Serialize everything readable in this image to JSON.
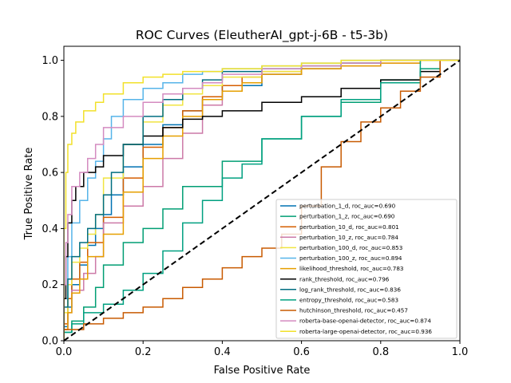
{
  "chart_data": {
    "type": "line",
    "title": "ROC Curves (EleutherAI_gpt-j-6B - t5-3b)",
    "xlabel": "False Positive Rate",
    "ylabel": "True Positive Rate",
    "xlim": [
      0,
      1.0
    ],
    "ylim": [
      0,
      1.05
    ],
    "xticks": [
      "0.0",
      "0.2",
      "0.4",
      "0.6",
      "0.8",
      "1.0"
    ],
    "yticks": [
      "0.0",
      "0.2",
      "0.4",
      "0.6",
      "0.8",
      "1.0"
    ],
    "grid": false,
    "legend_position": "lower-right",
    "series": [
      {
        "name": "perturbation_1_d, roc_auc=0.690",
        "color": "#0072b2",
        "x": [
          0,
          0.01,
          0.02,
          0.04,
          0.06,
          0.08,
          0.1,
          0.12,
          0.15,
          0.2,
          0.25,
          0.3,
          0.35,
          0.4,
          0.5,
          0.6,
          0.7,
          0.8,
          0.9,
          1.0
        ],
        "y": [
          0,
          0.05,
          0.12,
          0.2,
          0.27,
          0.34,
          0.4,
          0.45,
          0.52,
          0.62,
          0.7,
          0.77,
          0.82,
          0.86,
          0.91,
          0.95,
          0.97,
          0.99,
          1.0,
          1.0
        ]
      },
      {
        "name": "perturbation_1_z, roc_auc=0.690",
        "color": "#009e73",
        "x": [
          0,
          0.02,
          0.05,
          0.08,
          0.1,
          0.15,
          0.2,
          0.25,
          0.3,
          0.4,
          0.5,
          0.6,
          0.7,
          0.8,
          0.9,
          0.95,
          1.0
        ],
        "y": [
          0,
          0.03,
          0.07,
          0.12,
          0.19,
          0.27,
          0.35,
          0.4,
          0.47,
          0.55,
          0.64,
          0.72,
          0.8,
          0.85,
          0.93,
          0.97,
          1.0
        ]
      },
      {
        "name": "perturbation_10_d, roc_auc=0.801",
        "color": "#d55e00",
        "x": [
          0,
          0.01,
          0.02,
          0.04,
          0.06,
          0.1,
          0.15,
          0.2,
          0.25,
          0.3,
          0.35,
          0.4,
          0.45,
          0.5,
          0.6,
          0.7,
          0.8,
          0.9,
          1.0
        ],
        "y": [
          0,
          0.06,
          0.15,
          0.22,
          0.28,
          0.35,
          0.44,
          0.58,
          0.69,
          0.76,
          0.82,
          0.87,
          0.91,
          0.94,
          0.96,
          0.98,
          0.99,
          1.0,
          1.0
        ]
      },
      {
        "name": "perturbation_10_z, roc_auc=0.784",
        "color": "#cc79a7",
        "x": [
          0,
          0.01,
          0.02,
          0.05,
          0.08,
          0.1,
          0.15,
          0.2,
          0.25,
          0.3,
          0.35,
          0.4,
          0.45,
          0.5,
          0.6,
          0.7,
          0.8,
          0.9,
          1.0
        ],
        "y": [
          0,
          0.04,
          0.1,
          0.18,
          0.24,
          0.3,
          0.42,
          0.48,
          0.55,
          0.65,
          0.74,
          0.84,
          0.89,
          0.92,
          0.95,
          0.97,
          0.98,
          0.99,
          1.0
        ]
      },
      {
        "name": "perturbation_100_d, roc_auc=0.853",
        "color": "#f0e442",
        "x": [
          0,
          0.01,
          0.02,
          0.04,
          0.06,
          0.08,
          0.1,
          0.15,
          0.2,
          0.25,
          0.3,
          0.35,
          0.4,
          0.5,
          0.6,
          0.7,
          0.8,
          0.9,
          1.0
        ],
        "y": [
          0,
          0.1,
          0.2,
          0.28,
          0.33,
          0.38,
          0.45,
          0.58,
          0.7,
          0.78,
          0.84,
          0.88,
          0.91,
          0.94,
          0.96,
          0.98,
          0.99,
          1.0,
          1.0
        ]
      },
      {
        "name": "perturbation_100_z, roc_auc=0.894",
        "color": "#56b4e9",
        "x": [
          0,
          0.01,
          0.02,
          0.04,
          0.06,
          0.08,
          0.1,
          0.12,
          0.15,
          0.2,
          0.25,
          0.3,
          0.35,
          0.4,
          0.5,
          0.6,
          0.7,
          0.8,
          0.9,
          1.0
        ],
        "y": [
          0,
          0.15,
          0.3,
          0.42,
          0.5,
          0.58,
          0.64,
          0.72,
          0.8,
          0.86,
          0.9,
          0.92,
          0.95,
          0.96,
          0.97,
          0.98,
          0.99,
          1.0,
          1.0,
          1.0
        ]
      },
      {
        "name": "likelihood_threshold, roc_auc=0.783",
        "color": "#e69f00",
        "x": [
          0,
          0.01,
          0.02,
          0.04,
          0.06,
          0.1,
          0.15,
          0.2,
          0.25,
          0.3,
          0.35,
          0.4,
          0.45,
          0.5,
          0.6,
          0.7,
          0.8,
          0.9,
          1.0
        ],
        "y": [
          0,
          0.04,
          0.1,
          0.17,
          0.22,
          0.3,
          0.38,
          0.53,
          0.65,
          0.73,
          0.8,
          0.86,
          0.89,
          0.92,
          0.95,
          0.97,
          0.98,
          0.99,
          1.0
        ]
      },
      {
        "name": "rank_threshold, roc_auc=0.796",
        "color": "#000000",
        "x": [
          0,
          0.005,
          0.01,
          0.02,
          0.03,
          0.05,
          0.08,
          0.1,
          0.15,
          0.2,
          0.25,
          0.3,
          0.35,
          0.4,
          0.5,
          0.6,
          0.7,
          0.8,
          0.9,
          0.95,
          1.0
        ],
        "y": [
          0,
          0.15,
          0.3,
          0.42,
          0.5,
          0.55,
          0.6,
          0.62,
          0.66,
          0.7,
          0.73,
          0.76,
          0.79,
          0.8,
          0.82,
          0.85,
          0.87,
          0.9,
          0.93,
          0.96,
          1.0
        ]
      },
      {
        "name": "log_rank_threshold, roc_auc=0.836",
        "color": "#006e80",
        "x": [
          0,
          0.01,
          0.02,
          0.04,
          0.06,
          0.08,
          0.1,
          0.12,
          0.15,
          0.2,
          0.25,
          0.3,
          0.35,
          0.4,
          0.5,
          0.6,
          0.7,
          0.8,
          0.9,
          1.0
        ],
        "y": [
          0,
          0.12,
          0.22,
          0.3,
          0.35,
          0.4,
          0.45,
          0.52,
          0.6,
          0.7,
          0.8,
          0.86,
          0.9,
          0.93,
          0.96,
          0.97,
          0.98,
          0.99,
          1.0,
          1.0
        ]
      },
      {
        "name": "entropy_threshold, roc_auc=0.583",
        "color": "#00a080",
        "x": [
          0,
          0.02,
          0.05,
          0.1,
          0.15,
          0.2,
          0.25,
          0.3,
          0.35,
          0.4,
          0.45,
          0.5,
          0.6,
          0.7,
          0.8,
          0.9,
          1.0
        ],
        "y": [
          0,
          0.03,
          0.06,
          0.1,
          0.13,
          0.18,
          0.24,
          0.32,
          0.42,
          0.5,
          0.58,
          0.63,
          0.72,
          0.8,
          0.86,
          0.92,
          1.0
        ]
      },
      {
        "name": "hutchinson_threshold, roc_auc=0.457",
        "color": "#c85a00",
        "x": [
          0,
          0.05,
          0.1,
          0.15,
          0.2,
          0.25,
          0.3,
          0.35,
          0.4,
          0.45,
          0.5,
          0.55,
          0.6,
          0.65,
          0.7,
          0.75,
          0.8,
          0.85,
          0.9,
          0.95,
          1.0
        ],
        "y": [
          0,
          0.04,
          0.06,
          0.08,
          0.1,
          0.12,
          0.15,
          0.19,
          0.22,
          0.26,
          0.3,
          0.33,
          0.38,
          0.48,
          0.62,
          0.71,
          0.78,
          0.83,
          0.89,
          0.94,
          1.0
        ]
      },
      {
        "name": "roberta-base-openai-detector, roc_auc=0.874",
        "color": "#d48bc0",
        "x": [
          0,
          0.005,
          0.01,
          0.02,
          0.04,
          0.06,
          0.08,
          0.1,
          0.15,
          0.2,
          0.25,
          0.3,
          0.35,
          0.4,
          0.5,
          0.6,
          0.7,
          0.8,
          0.9,
          1.0
        ],
        "y": [
          0,
          0.2,
          0.35,
          0.45,
          0.55,
          0.6,
          0.65,
          0.7,
          0.76,
          0.8,
          0.85,
          0.88,
          0.9,
          0.92,
          0.95,
          0.97,
          0.98,
          0.99,
          1.0,
          1.0
        ]
      },
      {
        "name": "roberta-large-openai-detector, roc_auc=0.936",
        "color": "#f2e12a",
        "x": [
          0,
          0.005,
          0.01,
          0.02,
          0.03,
          0.05,
          0.08,
          0.1,
          0.15,
          0.2,
          0.25,
          0.3,
          0.4,
          0.5,
          0.6,
          0.7,
          0.8,
          0.9,
          1.0
        ],
        "y": [
          0,
          0.4,
          0.6,
          0.7,
          0.74,
          0.78,
          0.82,
          0.85,
          0.88,
          0.92,
          0.94,
          0.95,
          0.96,
          0.97,
          0.98,
          0.99,
          1.0,
          1.0,
          1.0
        ]
      }
    ],
    "reference_line": {
      "x": [
        0,
        1
      ],
      "y": [
        0,
        1
      ],
      "color": "#000000",
      "style": "dashed"
    }
  }
}
